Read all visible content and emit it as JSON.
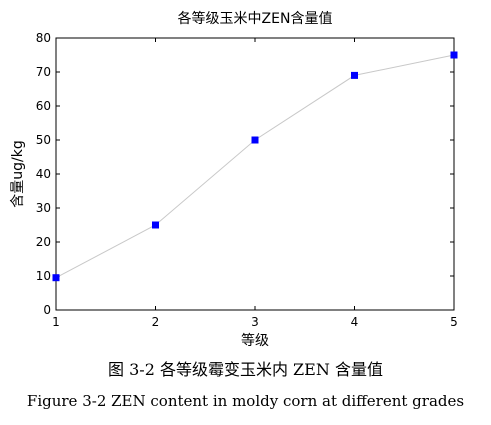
{
  "chart_data": {
    "type": "line",
    "title": "各等级玉米中ZEN含量值",
    "xlabel": "等级",
    "ylabel": "含量ug/kg",
    "x": [
      1,
      2,
      3,
      4,
      5
    ],
    "series": [
      {
        "values": [
          9.5,
          25,
          50,
          69,
          75
        ],
        "color": "#0000ff"
      }
    ],
    "xlim": [
      1,
      5
    ],
    "ylim": [
      0,
      80
    ],
    "xticks": [
      1,
      2,
      3,
      4,
      5
    ],
    "yticks": [
      0,
      10,
      20,
      30,
      40,
      50,
      60,
      70,
      80
    ],
    "grid": false,
    "line_color": "#c8c8c8",
    "marker": "square"
  },
  "captions": {
    "cn": "图 3-2  各等级霉变玉米内 ZEN 含量值",
    "en": "Figure 3-2 ZEN content in moldy corn at different grades"
  }
}
